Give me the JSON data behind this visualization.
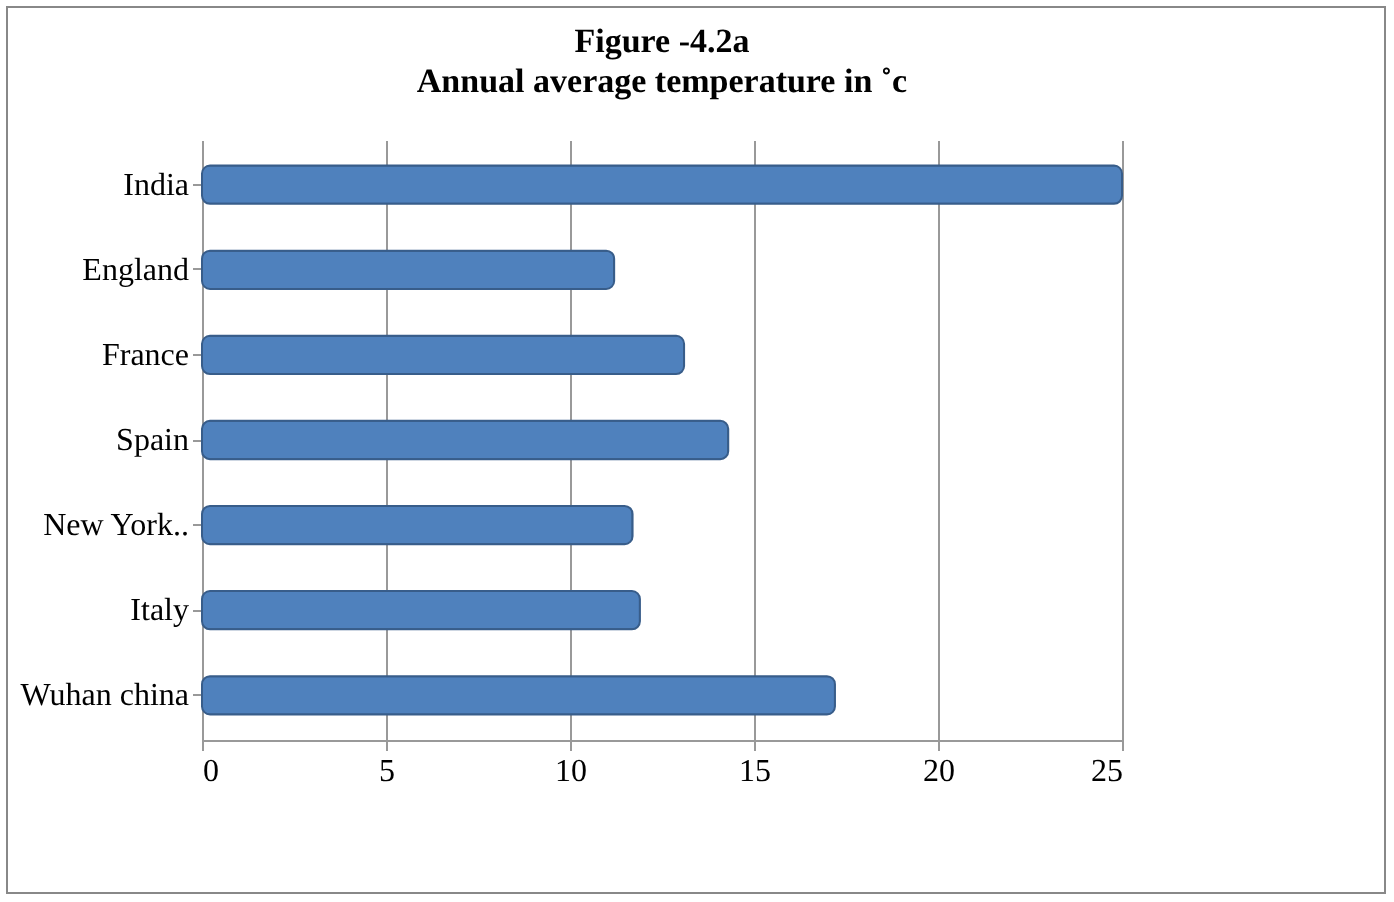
{
  "chart_data": {
    "type": "bar",
    "orientation": "horizontal",
    "title": "Figure -4.2a",
    "subtitle": "Annual average temperature in ˚c",
    "categories": [
      "India",
      "England",
      "France",
      "Spain",
      "New York..",
      "Italy",
      "Wuhan china"
    ],
    "values": [
      25,
      11.2,
      13.1,
      14.3,
      11.7,
      11.9,
      17.2
    ],
    "color": "#4f81bd",
    "xlim": [
      0,
      25
    ],
    "xticks": [
      0,
      5,
      10,
      15,
      20,
      25
    ],
    "grid": "x"
  }
}
